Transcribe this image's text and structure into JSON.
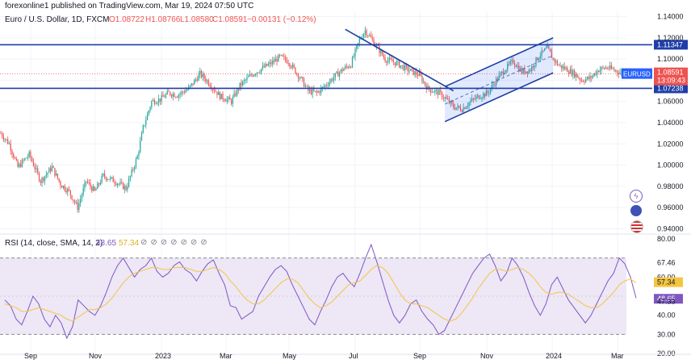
{
  "publish_note": "forexonline1 published on TradingView.com, Mar 19, 2024 07:50 UTC",
  "colors": {
    "up": "#26a69a",
    "down": "#ef5350",
    "blue_line": "#1e3ea8",
    "rsi_line": "#7e57c2",
    "rsi_sma": "#f5c542",
    "rsi_band": "#ede7f6",
    "price_badge": "#2962ff"
  },
  "chart_data": [
    {
      "type": "candlestick",
      "title": "Euro / U.S. Dollar, 1D, FXCM",
      "ohlc_label": {
        "o": "O1.08722",
        "h": "H1.08766",
        "l": "L1.08580",
        "c": "C1.08591",
        "chg": "−0.00131 (−0.12%)"
      },
      "symbol": "EURUSD",
      "last_price": "1.08591",
      "countdown": "13:09:43",
      "ylim": [
        0.935,
        1.145
      ],
      "y_ticks": [
        "1.14000",
        "1.12000",
        "1.10000",
        "1.08000",
        "1.06000",
        "1.04000",
        "1.02000",
        "1.00000",
        "0.98000",
        "0.96000",
        "0.94000"
      ],
      "x_ticks": [
        "Sep",
        "Nov",
        "2023",
        "Mar",
        "May",
        "Jul",
        "Sep",
        "Nov",
        "2024",
        "Mar"
      ],
      "close_path": [
        [
          0,
          1.03
        ],
        [
          6,
          1.02
        ],
        [
          12,
          0.998
        ],
        [
          20,
          1.01
        ],
        [
          28,
          0.985
        ],
        [
          36,
          0.998
        ],
        [
          42,
          0.982
        ],
        [
          48,
          0.975
        ],
        [
          54,
          0.96
        ],
        [
          60,
          0.985
        ],
        [
          66,
          0.975
        ],
        [
          72,
          0.99
        ],
        [
          80,
          0.985
        ],
        [
          88,
          0.978
        ],
        [
          96,
          1.008
        ],
        [
          100,
          1.035
        ],
        [
          106,
          1.06
        ],
        [
          112,
          1.062
        ],
        [
          118,
          1.068
        ],
        [
          124,
          1.066
        ],
        [
          132,
          1.072
        ],
        [
          140,
          1.086
        ],
        [
          146,
          1.078
        ],
        [
          154,
          1.065
        ],
        [
          162,
          1.06
        ],
        [
          168,
          1.075
        ],
        [
          176,
          1.085
        ],
        [
          182,
          1.09
        ],
        [
          190,
          1.096
        ],
        [
          196,
          1.102
        ],
        [
          202,
          1.098
        ],
        [
          210,
          1.083
        ],
        [
          216,
          1.07
        ],
        [
          222,
          1.068
        ],
        [
          228,
          1.075
        ],
        [
          234,
          1.083
        ],
        [
          240,
          1.09
        ],
        [
          246,
          1.095
        ],
        [
          252,
          1.118
        ],
        [
          256,
          1.127
        ],
        [
          262,
          1.116
        ],
        [
          270,
          1.1
        ],
        [
          278,
          1.096
        ],
        [
          286,
          1.09
        ],
        [
          294,
          1.085
        ],
        [
          300,
          1.072
        ],
        [
          308,
          1.068
        ],
        [
          312,
          1.063
        ],
        [
          318,
          1.055
        ],
        [
          324,
          1.053
        ],
        [
          330,
          1.06
        ],
        [
          336,
          1.065
        ],
        [
          342,
          1.068
        ],
        [
          348,
          1.08
        ],
        [
          354,
          1.09
        ],
        [
          360,
          1.098
        ],
        [
          366,
          1.088
        ],
        [
          372,
          1.09
        ],
        [
          378,
          1.103
        ],
        [
          384,
          1.11
        ],
        [
          388,
          1.1
        ],
        [
          392,
          1.094
        ],
        [
          398,
          1.09
        ],
        [
          404,
          1.085
        ],
        [
          408,
          1.08
        ],
        [
          414,
          1.082
        ],
        [
          420,
          1.09
        ],
        [
          426,
          1.092
        ],
        [
          432,
          1.089
        ],
        [
          438,
          1.086
        ]
      ],
      "levels": [
        {
          "value": 1.11347,
          "label": "1.11347"
        },
        {
          "value": 1.07238,
          "label": "1.07238"
        }
      ],
      "trendlines": [
        {
          "from": [
            242,
            1.128
          ],
          "to": [
            318,
            1.07
          ]
        },
        {
          "from": [
            312,
            1.074
          ],
          "to": [
            388,
            1.12
          ]
        },
        {
          "from": [
            312,
            1.041
          ],
          "to": [
            388,
            1.087
          ]
        }
      ],
      "channel_fill": "rgba(41,98,255,0.14)"
    },
    {
      "type": "line",
      "title": "RSI (14, close, SMA, 14, 2)",
      "rsi_value": "48.65",
      "sma_value": "57.34",
      "ylim": [
        20,
        80
      ],
      "y_ticks": [
        "80.00",
        "67.46",
        "60.00",
        "57.34",
        "48.65",
        "47.33",
        "40.00",
        "30.00",
        "20.00"
      ],
      "overbought": 70,
      "oversold": 30,
      "series": [
        {
          "values": [
            48,
            45,
            38,
            35,
            42,
            50,
            46,
            38,
            34,
            40,
            36,
            28,
            34,
            48,
            45,
            42,
            40,
            45,
            52,
            60,
            66,
            70,
            65,
            60,
            64,
            66,
            70,
            63,
            60,
            62,
            66,
            68,
            64,
            62,
            58,
            63,
            67,
            69,
            62,
            56,
            45,
            44,
            38,
            40,
            42,
            50,
            55,
            60,
            64,
            66,
            63,
            56,
            50,
            44,
            38,
            35,
            42,
            48,
            55,
            60,
            62,
            58,
            55,
            62,
            70,
            77,
            68,
            58,
            48,
            40,
            36,
            40,
            46,
            48,
            42,
            38,
            35,
            30,
            32,
            38,
            44,
            50,
            56,
            62,
            66,
            70,
            72,
            66,
            58,
            62,
            70,
            66,
            60,
            52,
            45,
            40,
            46,
            56,
            60,
            54,
            48,
            44,
            40,
            36,
            40,
            46,
            52,
            58,
            62,
            70,
            67,
            60,
            49
          ]
        },
        {
          "values": [
            46,
            45,
            44,
            42,
            42,
            43,
            44,
            43,
            42,
            41,
            40,
            38,
            37,
            39,
            41,
            43,
            43,
            44,
            46,
            49,
            53,
            57,
            60,
            62,
            63,
            64,
            65,
            65,
            64,
            64,
            65,
            65,
            65,
            64,
            63,
            63,
            64,
            65,
            64,
            62,
            58,
            55,
            51,
            48,
            46,
            46,
            48,
            51,
            54,
            57,
            59,
            59,
            57,
            53,
            49,
            46,
            44,
            45,
            47,
            50,
            53,
            56,
            57,
            58,
            61,
            64,
            66,
            65,
            62,
            57,
            52,
            48,
            46,
            46,
            45,
            44,
            42,
            40,
            38,
            37,
            38,
            41,
            45,
            49,
            54,
            58,
            62,
            64,
            64,
            63,
            64,
            65,
            64,
            62,
            59,
            55,
            52,
            51,
            52,
            52,
            51,
            49,
            47,
            45,
            44,
            44,
            46,
            49,
            52,
            56,
            58,
            59,
            57
          ]
        }
      ]
    }
  ]
}
